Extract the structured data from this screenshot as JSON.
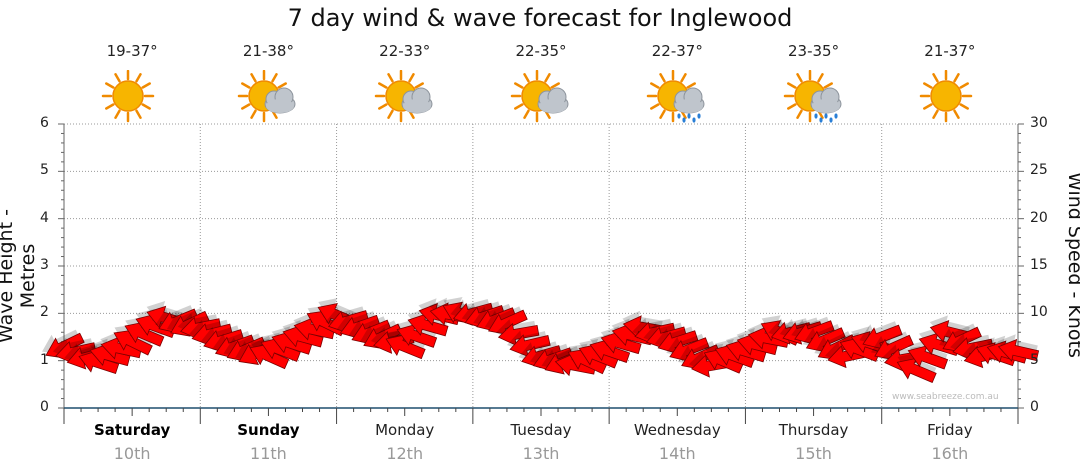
{
  "title": "7 day wind & wave forecast for Inglewood",
  "watermark": "www.seabreeze.com.au",
  "chart_data": {
    "type": "line",
    "title": "7 day wind & wave forecast for Inglewood",
    "ylabel_left": "Wave Height - Metres",
    "ylabel_right": "Wind Speed - Knots",
    "ylim_left": [
      0,
      6
    ],
    "ylim_right": [
      0,
      30
    ],
    "yticks_left": [
      "0",
      "1",
      "2",
      "3",
      "4",
      "5",
      "6"
    ],
    "yticks_right": [
      "0",
      "5",
      "10",
      "15",
      "20",
      "25",
      "30"
    ],
    "grid": true,
    "days": [
      {
        "name": "Saturday",
        "date": "10th",
        "bold": true,
        "temp": "19-37°",
        "icon": "sun-icon"
      },
      {
        "name": "Sunday",
        "date": "11th",
        "bold": true,
        "temp": "21-38°",
        "icon": "sun-cloud-icon"
      },
      {
        "name": "Monday",
        "date": "12th",
        "bold": false,
        "temp": "22-33°",
        "icon": "sun-cloud-icon"
      },
      {
        "name": "Tuesday",
        "date": "13th",
        "bold": false,
        "temp": "22-35°",
        "icon": "sun-cloud-icon"
      },
      {
        "name": "Wednesday",
        "date": "14th",
        "bold": false,
        "temp": "22-37°",
        "icon": "sun-rain-icon"
      },
      {
        "name": "Thursday",
        "date": "15th",
        "bold": false,
        "temp": "23-35°",
        "icon": "sun-rain-icon"
      },
      {
        "name": "Friday",
        "date": "16th",
        "bold": false,
        "temp": "21-37°",
        "icon": "sun-icon"
      }
    ],
    "wind_series": {
      "name": "Wind",
      "color": "#ff0000",
      "x_hours": [
        0,
        6,
        12,
        18,
        24,
        30,
        36,
        42,
        48,
        54,
        60,
        66,
        72,
        78,
        84,
        90,
        96,
        102,
        108,
        114,
        120,
        126,
        132,
        138,
        144,
        150,
        156,
        162,
        168
      ],
      "speed_knots": [
        6.5,
        4.8,
        7.0,
        9.5,
        8.5,
        6.5,
        5.5,
        7.5,
        9.8,
        8.0,
        6.5,
        9.8,
        10.0,
        9.0,
        5.5,
        4.5,
        6.0,
        8.5,
        7.0,
        4.5,
        6.0,
        8.0,
        8.0,
        5.5,
        7.5,
        4.0,
        8.0,
        5.5,
        6.0
      ],
      "direction": "westerly (arrows pointing west)"
    }
  }
}
